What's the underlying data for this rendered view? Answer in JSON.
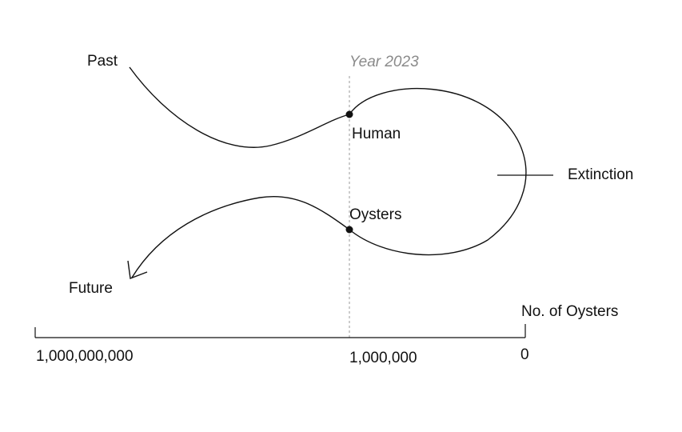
{
  "labels": {
    "past": "Past",
    "future": "Future",
    "year": "Year 2023",
    "human": "Human",
    "oysters": "Oysters",
    "extinction": "Extinction",
    "axis_title": "No. of Oysters"
  },
  "axis": {
    "ticks": [
      "1,000,000,000",
      "1,000,000",
      "0"
    ]
  },
  "colors": {
    "line": "#111111",
    "dashed": "#9a9a9a",
    "year_text": "#8a8a8a"
  }
}
